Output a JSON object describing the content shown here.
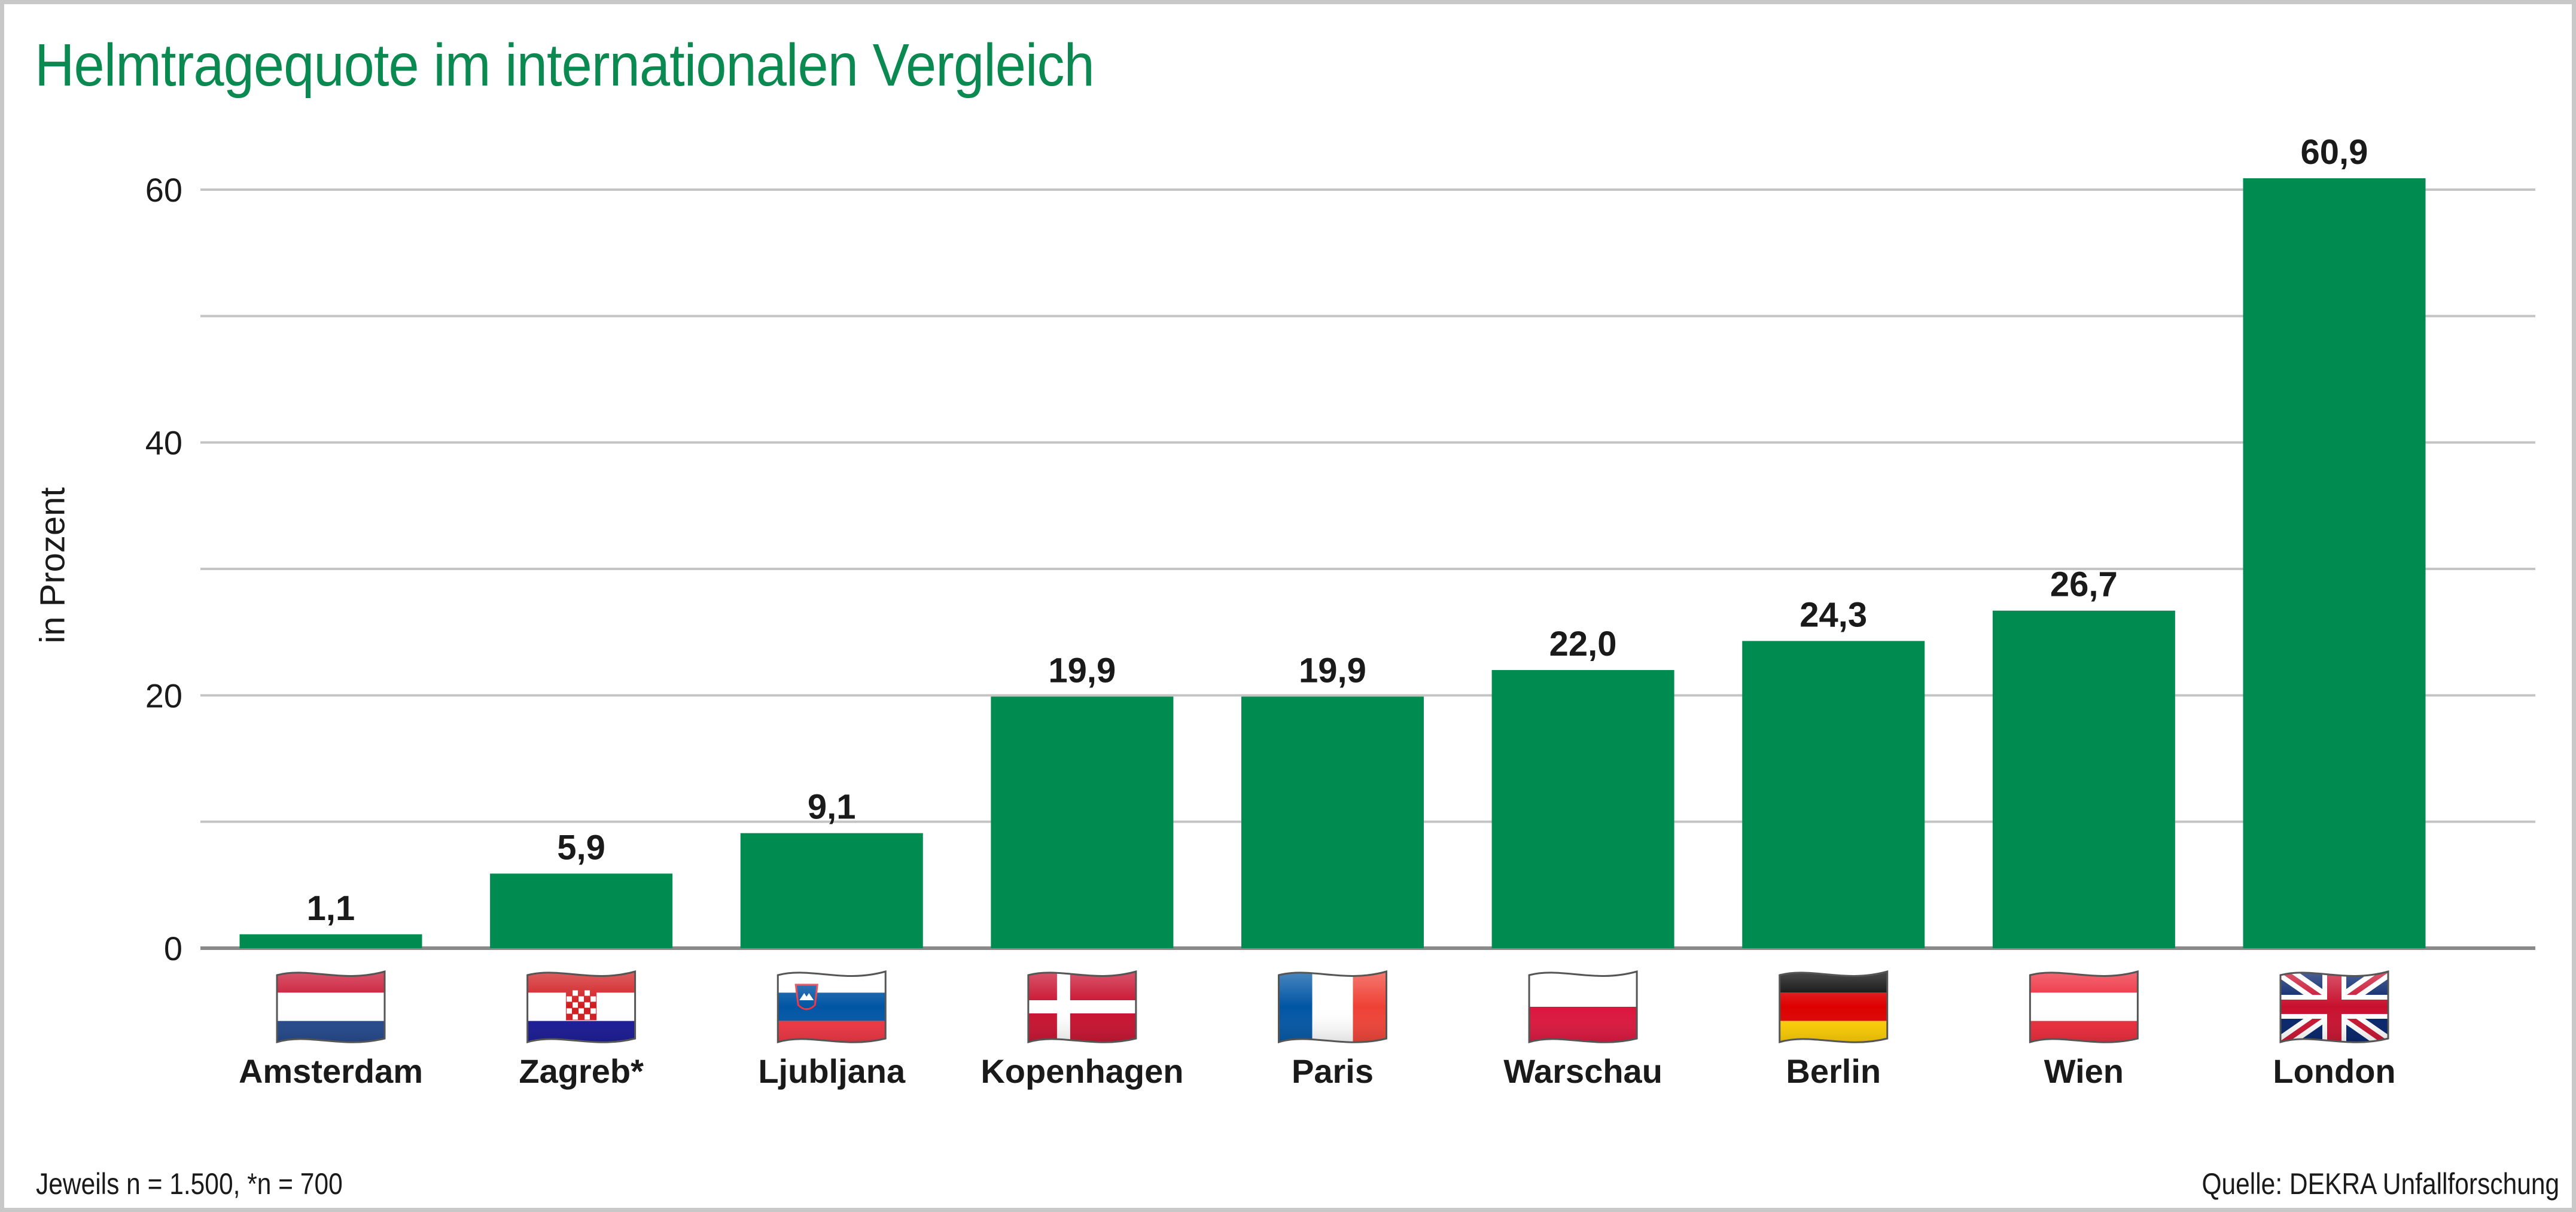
{
  "chart_data": {
    "type": "bar",
    "title": "Helmtragequote im internationalen Vergleich",
    "ylabel": "in Prozent",
    "xlabel": "",
    "categories": [
      "Amsterdam",
      "Zagreb*",
      "Ljubljana",
      "Kopenhagen",
      "Paris",
      "Warschau",
      "Berlin",
      "Wien",
      "London"
    ],
    "values": [
      1.1,
      5.9,
      9.1,
      19.9,
      19.9,
      22.0,
      24.3,
      26.7,
      60.9
    ],
    "value_labels": [
      "1,1",
      "5,9",
      "9,1",
      "19,9",
      "19,9",
      "22,0",
      "24,3",
      "26,7",
      "60,9"
    ],
    "flags": [
      "netherlands-flag",
      "croatia-flag",
      "slovenia-flag",
      "denmark-flag",
      "france-flag",
      "poland-flag",
      "germany-flag",
      "austria-flag",
      "uk-flag"
    ],
    "ylim": [
      0,
      60
    ],
    "yticks": [
      0,
      20,
      40,
      60
    ],
    "grid": true,
    "bar_color": "#008c50",
    "title_color": "#0a8a50"
  },
  "notes": {
    "sample": "Jeweils n = 1.500, *n = 700",
    "source": "Quelle: DEKRA Unfallforschung"
  }
}
